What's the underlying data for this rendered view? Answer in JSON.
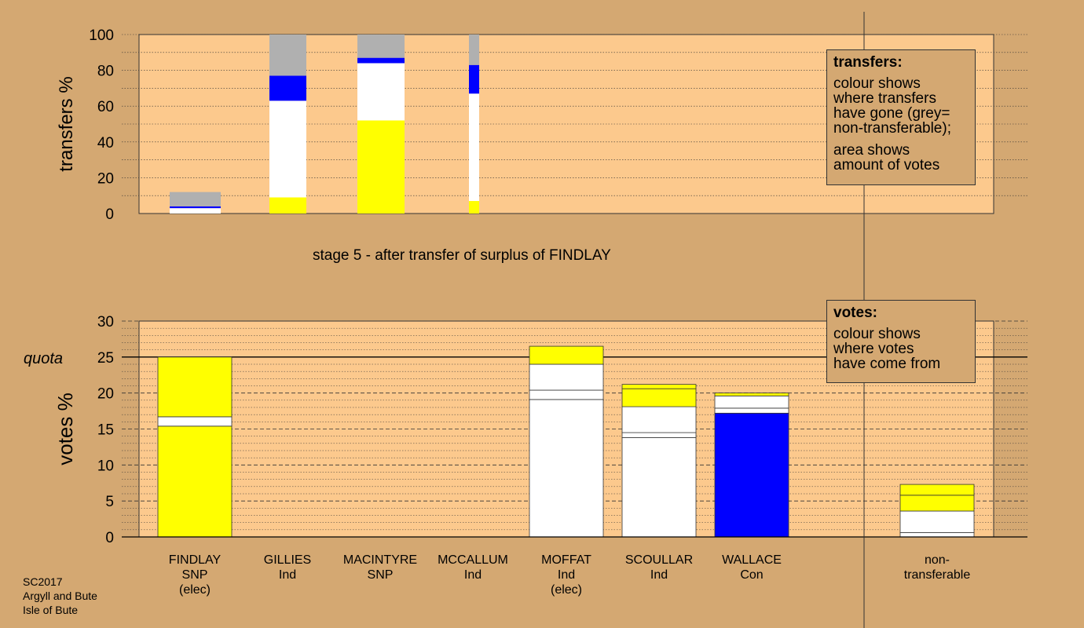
{
  "colors": {
    "background": "#d4a872",
    "plot_bg": "#fcc98d",
    "snp": "#ffff00",
    "ind": "#ffffff",
    "con": "#0000ff",
    "non_transferable": "#b0b0b0"
  },
  "stage_title": "stage 5 - after transfer of surplus of FINDLAY",
  "footer": [
    "SC2017",
    "Argyll and Bute",
    "Isle of Bute"
  ],
  "legend_transfers": {
    "heading": "transfers:",
    "lines1": [
      "colour shows",
      "where transfers",
      "have gone (grey=",
      "non-transferable);"
    ],
    "lines2": [
      "area shows",
      "amount of votes"
    ]
  },
  "legend_votes": {
    "heading": "votes:",
    "lines": [
      "colour shows",
      "where votes",
      "have come from"
    ]
  },
  "candidates": [
    {
      "name": "FINDLAY",
      "party": "SNP",
      "note": "(elec)"
    },
    {
      "name": "GILLIES",
      "party": "Ind",
      "note": ""
    },
    {
      "name": "MACINTYRE",
      "party": "SNP",
      "note": ""
    },
    {
      "name": "MCCALLUM",
      "party": "Ind",
      "note": ""
    },
    {
      "name": "MOFFAT",
      "party": "Ind",
      "note": "(elec)"
    },
    {
      "name": "SCOULLAR",
      "party": "Ind",
      "note": ""
    },
    {
      "name": "WALLACE",
      "party": "Con",
      "note": ""
    },
    {
      "name": "non-",
      "party": "transferable",
      "note": ""
    }
  ],
  "chart_data": [
    {
      "type": "bar",
      "ylabel": "transfers %",
      "ylim": [
        0,
        100
      ],
      "ticks": [
        "0",
        "20",
        "40",
        "60",
        "80",
        "100"
      ],
      "columns": [
        {
          "candidate": "MOFFAT",
          "width_share": 12,
          "segments": [
            {
              "color": "ind",
              "from": 0,
              "to": 3
            },
            {
              "color": "con",
              "from": 3,
              "to": 4
            },
            {
              "color": "non_transferable",
              "from": 4,
              "to": 12
            }
          ]
        },
        {
          "candidate": "SCOULLAR",
          "width_share": 100,
          "segments": [
            {
              "color": "snp",
              "from": 0,
              "to": 9
            },
            {
              "color": "ind",
              "from": 9,
              "to": 63
            },
            {
              "color": "con",
              "from": 63,
              "to": 77
            },
            {
              "color": "non_transferable",
              "from": 77,
              "to": 100
            }
          ]
        },
        {
          "candidate": "WALLACE",
          "width_share": 100,
          "segments": [
            {
              "color": "snp",
              "from": 0,
              "to": 52
            },
            {
              "color": "ind",
              "from": 52,
              "to": 84
            },
            {
              "color": "con",
              "from": 84,
              "to": 87
            },
            {
              "color": "non_transferable",
              "from": 87,
              "to": 100
            }
          ]
        },
        {
          "candidate": "non-transferable",
          "width_share": 100,
          "segments": [
            {
              "color": "snp",
              "from": 0,
              "to": 7
            },
            {
              "color": "ind",
              "from": 7,
              "to": 67
            },
            {
              "color": "con",
              "from": 67,
              "to": 83
            },
            {
              "color": "non_transferable",
              "from": 83,
              "to": 100
            }
          ]
        }
      ]
    },
    {
      "type": "bar",
      "ylabel": "votes %",
      "ylim": [
        0,
        30
      ],
      "quota": 25,
      "quota_label": "quota",
      "ticks": [
        "0",
        "5",
        "10",
        "15",
        "20",
        "25",
        "30"
      ],
      "categories": [
        "FINDLAY",
        "GILLIES",
        "MACINTYRE",
        "MCCALLUM",
        "MOFFAT",
        "SCOULLAR",
        "WALLACE",
        "non-transferable"
      ],
      "stacks": [
        {
          "candidate": "FINDLAY",
          "segments": [
            {
              "color": "snp",
              "from": 0,
              "to": 15.4
            },
            {
              "color": "ind",
              "from": 15.4,
              "to": 16.7
            },
            {
              "color": "snp",
              "from": 16.7,
              "to": 25
            }
          ]
        },
        {
          "candidate": "GILLIES",
          "segments": []
        },
        {
          "candidate": "MACINTYRE",
          "segments": []
        },
        {
          "candidate": "MCCALLUM",
          "segments": []
        },
        {
          "candidate": "MOFFAT",
          "segments": [
            {
              "color": "ind",
              "from": 0,
              "to": 19.1
            },
            {
              "color": "ind",
              "from": 19.1,
              "to": 20.4
            },
            {
              "color": "ind",
              "from": 20.4,
              "to": 24
            },
            {
              "color": "snp",
              "from": 24,
              "to": 26.5
            }
          ]
        },
        {
          "candidate": "SCOULLAR",
          "segments": [
            {
              "color": "ind",
              "from": 0,
              "to": 13.8
            },
            {
              "color": "ind",
              "from": 13.8,
              "to": 14.5
            },
            {
              "color": "ind",
              "from": 14.5,
              "to": 18.1
            },
            {
              "color": "snp",
              "from": 18.1,
              "to": 20.6
            },
            {
              "color": "snp",
              "from": 20.6,
              "to": 21.2
            }
          ]
        },
        {
          "candidate": "WALLACE",
          "segments": [
            {
              "color": "con",
              "from": 0,
              "to": 17.2
            },
            {
              "color": "ind",
              "from": 17.2,
              "to": 17.9
            },
            {
              "color": "ind",
              "from": 17.9,
              "to": 19.6
            },
            {
              "color": "snp",
              "from": 19.6,
              "to": 20.0
            }
          ]
        },
        {
          "candidate": "non-transferable",
          "segments": [
            {
              "color": "ind",
              "from": 0,
              "to": 0.6
            },
            {
              "color": "ind",
              "from": 0.6,
              "to": 3.6
            },
            {
              "color": "snp",
              "from": 3.6,
              "to": 5.8
            },
            {
              "color": "snp",
              "from": 5.8,
              "to": 7.3
            }
          ]
        }
      ]
    }
  ]
}
